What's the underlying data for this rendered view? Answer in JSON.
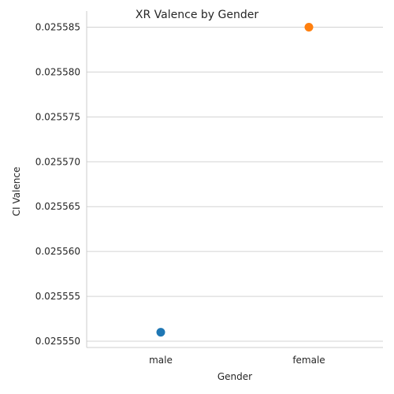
{
  "chart_data": {
    "type": "scatter",
    "title": "XR Valence by Gender",
    "xlabel": "Gender",
    "ylabel": "CI Valence",
    "categories": [
      "male",
      "female"
    ],
    "values": [
      0.025551,
      0.025585
    ],
    "point_colors": [
      "#1f77b4",
      "#ff7f0e"
    ],
    "yticks": [
      "0.025550",
      "0.025555",
      "0.025560",
      "0.025565",
      "0.025570",
      "0.025575",
      "0.025580",
      "0.025585"
    ],
    "ylim": [
      0.0255493,
      0.0255868
    ],
    "grid": "horizontal",
    "grid_color": "#d3d3d3",
    "legend": "none"
  }
}
